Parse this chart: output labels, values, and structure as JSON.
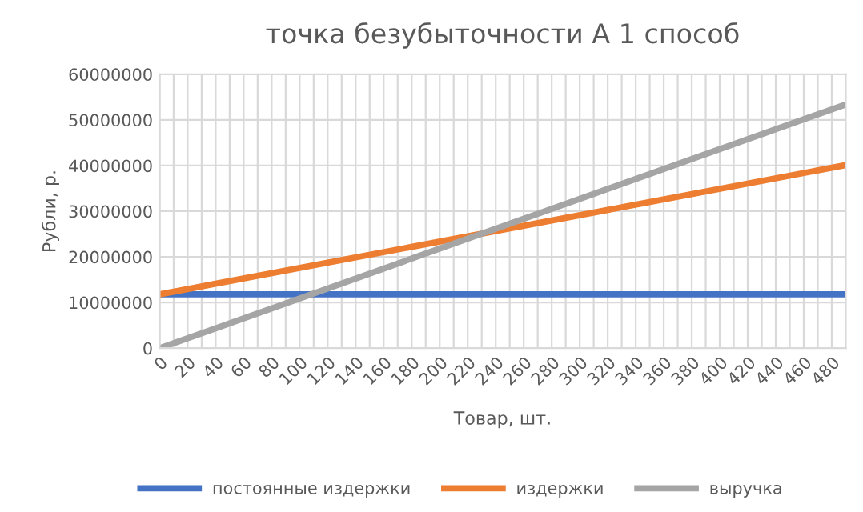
{
  "chart_data": {
    "type": "line",
    "title": "точка безубыточности А 1 способ",
    "xlabel": "Товар, шт.",
    "ylabel": "Рубли, р.",
    "x": [
      0,
      490
    ],
    "series": [
      {
        "name": "постоянные издержки",
        "color": "#4472c4",
        "values": [
          11800000,
          11800000
        ]
      },
      {
        "name": "издержки",
        "color": "#ed7d31",
        "values": [
          11800000,
          40100000
        ]
      },
      {
        "name": "выручка",
        "color": "#a5a5a5",
        "values": [
          0,
          53400000
        ]
      }
    ],
    "xlim": [
      0,
      490
    ],
    "xticks": [
      0,
      {
        "value": 10,
        "label": null
      },
      20,
      {
        "value": 30,
        "label": null
      },
      40,
      {
        "value": 50,
        "label": null
      },
      60,
      {
        "value": 70,
        "label": null
      },
      80,
      {
        "value": 90,
        "label": null
      },
      100,
      {
        "value": 110,
        "label": null
      },
      120,
      {
        "value": 130,
        "label": null
      },
      140,
      {
        "value": 150,
        "label": null
      },
      160,
      {
        "value": 170,
        "label": null
      },
      180,
      {
        "value": 190,
        "label": null
      },
      200,
      {
        "value": 210,
        "label": null
      },
      220,
      {
        "value": 230,
        "label": null
      },
      240,
      {
        "value": 250,
        "label": null
      },
      260,
      {
        "value": 270,
        "label": null
      },
      280,
      {
        "value": 290,
        "label": null
      },
      300,
      {
        "value": 310,
        "label": null
      },
      320,
      {
        "value": 330,
        "label": null
      },
      340,
      {
        "value": 350,
        "label": null
      },
      360,
      {
        "value": 370,
        "label": null
      },
      380,
      {
        "value": 390,
        "label": null
      },
      400,
      {
        "value": 410,
        "label": null
      },
      420,
      {
        "value": 430,
        "label": null
      },
      440,
      {
        "value": 450,
        "label": null
      },
      460,
      {
        "value": 470,
        "label": null
      },
      480,
      {
        "value": 490,
        "label": null
      }
    ],
    "ylim": [
      0,
      60000000
    ],
    "yticks": [
      0,
      10000000,
      20000000,
      30000000,
      40000000,
      50000000,
      60000000
    ],
    "grid": true,
    "legend": "bottom",
    "marker": "none",
    "line_style": "solid"
  }
}
